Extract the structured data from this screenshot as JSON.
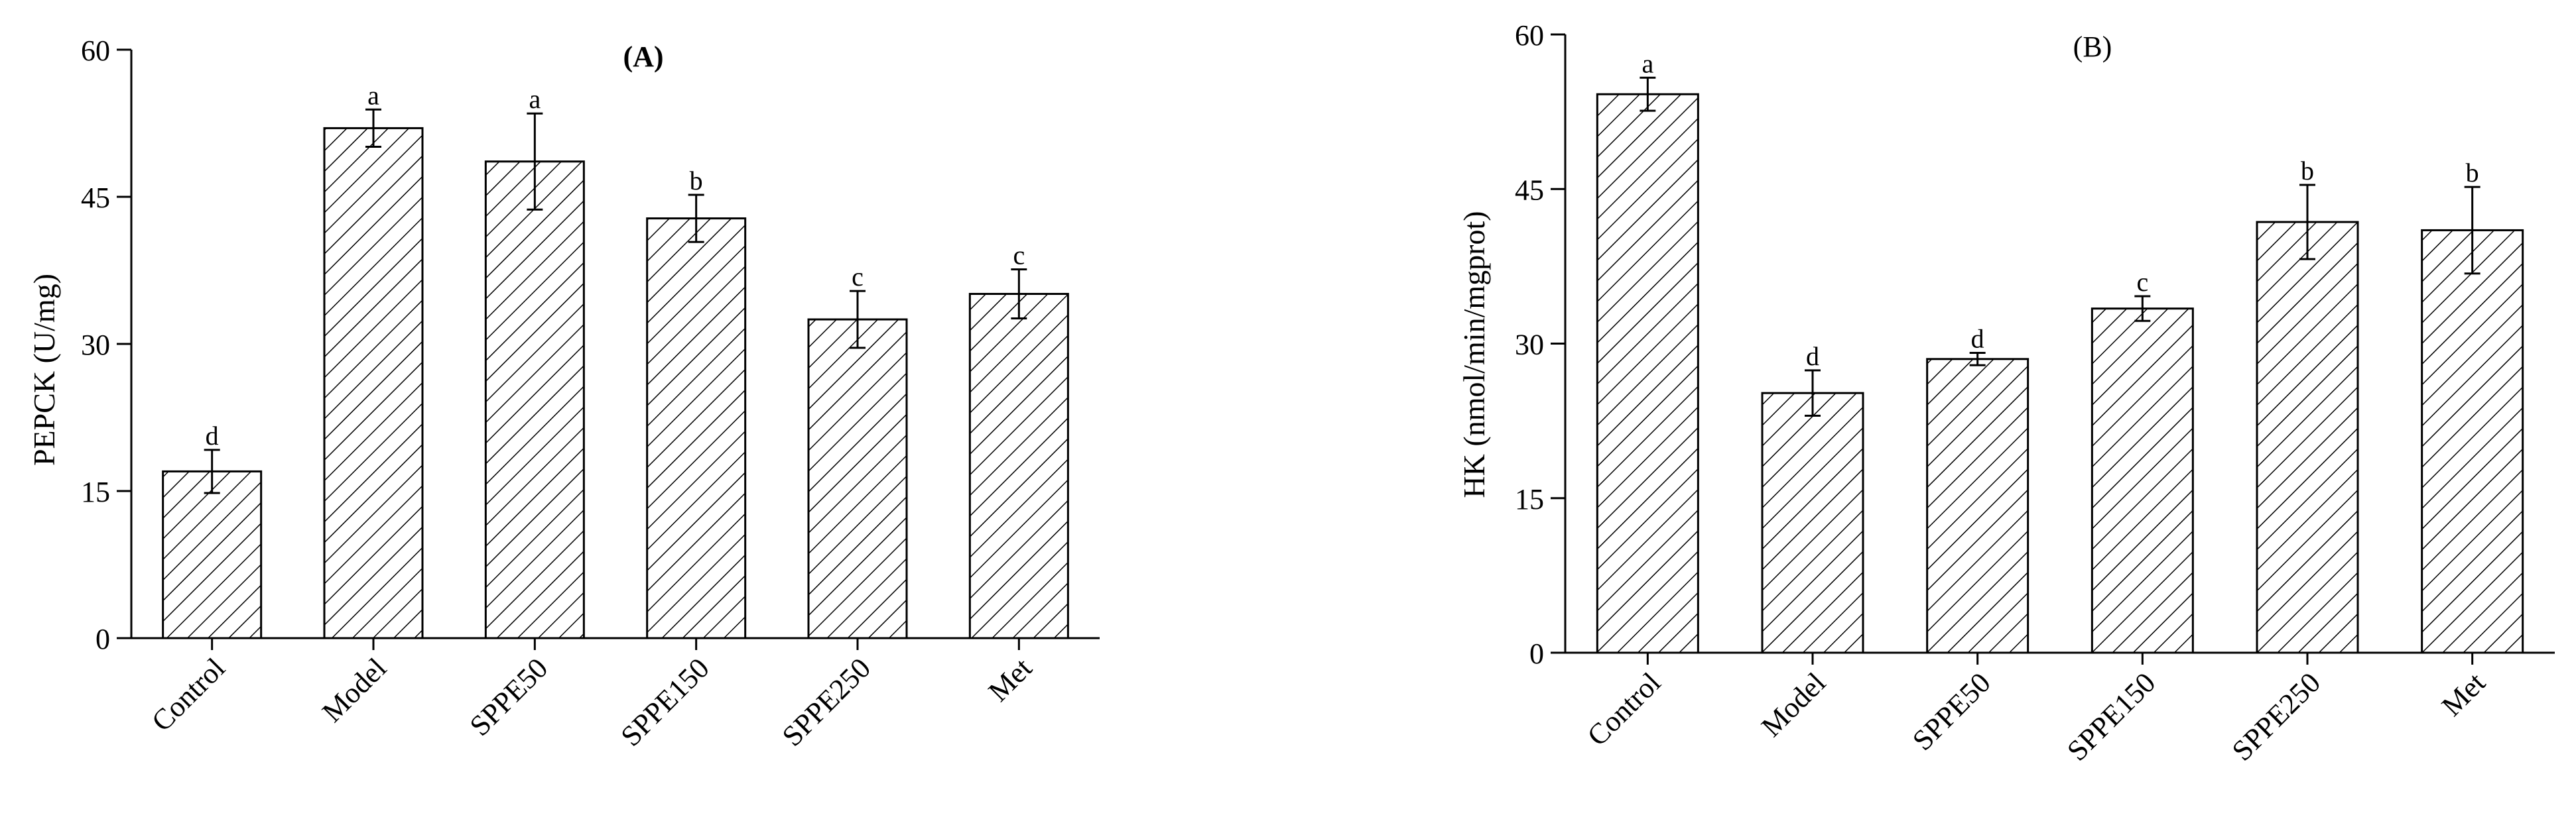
{
  "chart_data": [
    {
      "type": "bar",
      "title": "(A)",
      "ylabel": "PEPCK (U/mg)",
      "xlabel": "",
      "ylim": [
        0,
        60
      ],
      "yticks": [
        0,
        15,
        30,
        45,
        60
      ],
      "categories": [
        "Control",
        "Model",
        "SPPE50",
        "SPPE150",
        "SPPE250",
        "Met"
      ],
      "values": [
        17,
        52,
        48.6,
        42.8,
        32.5,
        35.1
      ],
      "errors": [
        2.2,
        1.9,
        4.9,
        2.4,
        2.9,
        2.5
      ],
      "letters": [
        "d",
        "a",
        "a",
        "b",
        "c",
        "c"
      ],
      "grid": false,
      "bar_fill": "hatched"
    },
    {
      "type": "bar",
      "title": "(B)",
      "ylabel": "HK (nmol/min/mgprot)",
      "xlabel": "",
      "ylim": [
        0,
        60
      ],
      "yticks": [
        0,
        15,
        30,
        45,
        60
      ],
      "categories": [
        "Control",
        "Model",
        "SPPE50",
        "SPPE150",
        "SPPE250",
        "Met"
      ],
      "values": [
        54.2,
        25.2,
        28.5,
        33.4,
        41.8,
        41
      ],
      "errors": [
        1.6,
        2.2,
        0.6,
        1.2,
        3.6,
        4.2
      ],
      "letters": [
        "a",
        "d",
        "d",
        "c",
        "b",
        "b"
      ],
      "grid": false,
      "bar_fill": "hatched"
    }
  ]
}
